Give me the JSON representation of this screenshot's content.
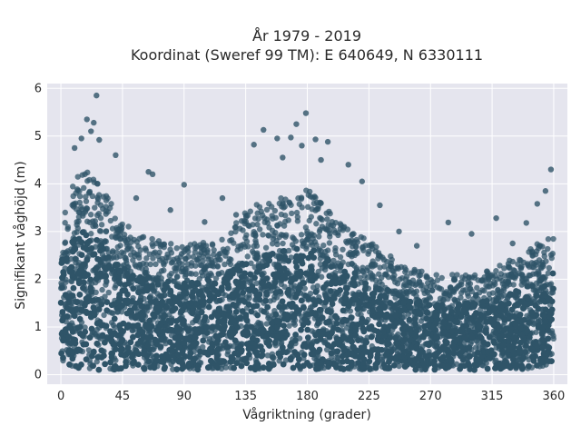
{
  "chart_data": {
    "type": "scatter",
    "title": "År 1979 - 2019",
    "subtitle": "Koordinat (Sweref 99 TM): E 640649, N 6330111",
    "xlabel": "Vågriktning (grader)",
    "ylabel": "Signifikant våghöjd (m)",
    "xlim": [
      -10,
      370
    ],
    "ylim": [
      -0.2,
      6.1
    ],
    "xticks": [
      0,
      45,
      90,
      135,
      180,
      225,
      270,
      315,
      360
    ],
    "yticks": [
      0,
      1,
      2,
      3,
      4,
      5,
      6
    ],
    "grid": true,
    "marker_color": "#2f5468",
    "background_color": "#e5e5ee",
    "dense_band": {
      "x": [
        0,
        10,
        20,
        30,
        45,
        60,
        90,
        120,
        135,
        160,
        180,
        200,
        225,
        250,
        270,
        300,
        315,
        340,
        360
      ],
      "y_low": [
        0.2,
        0.15,
        0.1,
        0.1,
        0.1,
        0.1,
        0.1,
        0.1,
        0.1,
        0.1,
        0.1,
        0.1,
        0.1,
        0.1,
        0.1,
        0.1,
        0.1,
        0.1,
        0.2
      ],
      "y_high": [
        3.3,
        4.1,
        4.3,
        4.0,
        3.2,
        2.9,
        2.7,
        2.9,
        3.5,
        3.7,
        3.9,
        3.3,
        2.8,
        2.3,
        2.1,
        2.1,
        2.2,
        2.6,
        3.0
      ]
    },
    "outliers": [
      {
        "x": 26,
        "y": 5.85
      },
      {
        "x": 19,
        "y": 5.35
      },
      {
        "x": 24,
        "y": 5.28
      },
      {
        "x": 22,
        "y": 5.1
      },
      {
        "x": 15,
        "y": 4.95
      },
      {
        "x": 28,
        "y": 4.92
      },
      {
        "x": 10,
        "y": 4.75
      },
      {
        "x": 40,
        "y": 4.6
      },
      {
        "x": 64,
        "y": 4.25
      },
      {
        "x": 67,
        "y": 4.2
      },
      {
        "x": 90,
        "y": 3.98
      },
      {
        "x": 118,
        "y": 3.7
      },
      {
        "x": 141,
        "y": 4.82
      },
      {
        "x": 148,
        "y": 5.13
      },
      {
        "x": 158,
        "y": 4.95
      },
      {
        "x": 168,
        "y": 4.97
      },
      {
        "x": 172,
        "y": 5.25
      },
      {
        "x": 179,
        "y": 5.48
      },
      {
        "x": 186,
        "y": 4.93
      },
      {
        "x": 195,
        "y": 4.88
      },
      {
        "x": 162,
        "y": 4.55
      },
      {
        "x": 176,
        "y": 4.8
      },
      {
        "x": 190,
        "y": 4.5
      },
      {
        "x": 210,
        "y": 4.4
      },
      {
        "x": 220,
        "y": 4.05
      },
      {
        "x": 233,
        "y": 3.55
      },
      {
        "x": 247,
        "y": 3.0
      },
      {
        "x": 260,
        "y": 2.7
      },
      {
        "x": 283,
        "y": 3.19
      },
      {
        "x": 300,
        "y": 2.95
      },
      {
        "x": 318,
        "y": 3.28
      },
      {
        "x": 340,
        "y": 3.18
      },
      {
        "x": 358,
        "y": 4.3
      },
      {
        "x": 354,
        "y": 3.85
      },
      {
        "x": 348,
        "y": 3.58
      },
      {
        "x": 330,
        "y": 2.75
      },
      {
        "x": 128,
        "y": 3.35
      },
      {
        "x": 105,
        "y": 3.2
      },
      {
        "x": 80,
        "y": 3.45
      },
      {
        "x": 55,
        "y": 3.7
      }
    ]
  }
}
